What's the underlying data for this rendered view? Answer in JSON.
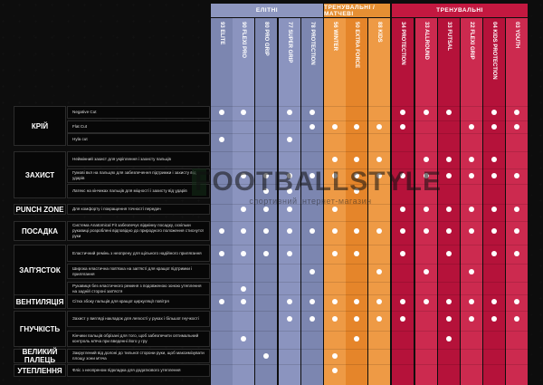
{
  "groups": [
    {
      "label": "ЕЛІТНІ",
      "color": "#8d96bf"
    },
    {
      "label": "ТРЕНУВАЛЬНІ / МАТЧЕВІ",
      "color": "#e58f33"
    },
    {
      "label": "ТРЕНУВАЛЬНІ",
      "color": "#c31840"
    }
  ],
  "columns": [
    {
      "name": "93 ELITE",
      "group": 0
    },
    {
      "name": "90 FLEXI PRO",
      "group": 0
    },
    {
      "name": "80 PRO GRIP",
      "group": 0
    },
    {
      "name": "77 SUPER GRIP",
      "group": 0
    },
    {
      "name": "78 PROTECTION",
      "group": 0
    },
    {
      "name": "56 WINTER",
      "group": 1
    },
    {
      "name": "50 EXTRA FORCE",
      "group": 1
    },
    {
      "name": "88 KIDS",
      "group": 1
    },
    {
      "name": "34 PROTECTION",
      "group": 2
    },
    {
      "name": "33 ALLROUND",
      "group": 2
    },
    {
      "name": "33 FUTSAL",
      "group": 2
    },
    {
      "name": "22 FLEXI GRIP",
      "group": 2
    },
    {
      "name": "04 KIDS PROTECTION",
      "group": 2
    },
    {
      "name": "03 YOUTH",
      "group": 2
    }
  ],
  "categories": [
    {
      "label": "КРІЙ",
      "rows": [
        0,
        1,
        2
      ]
    },
    {
      "label": "ЗАХИСТ",
      "rows": [
        3,
        4,
        5
      ]
    },
    {
      "label": "PUNCH ZONE",
      "rows": [
        6
      ]
    },
    {
      "label": "ПОСАДКА",
      "rows": [
        7
      ]
    },
    {
      "label": "ЗАП'ЯСТОК",
      "rows": [
        8,
        9,
        10
      ]
    },
    {
      "label": "ВЕНТИЛЯЦІЯ",
      "rows": [
        11
      ]
    },
    {
      "label": "ГНУЧКІСТЬ",
      "rows": [
        12,
        13
      ]
    },
    {
      "label": "ВЕЛИКИЙ ПАЛЕЦЬ",
      "rows": [
        14
      ]
    },
    {
      "label": "УТЕПЛЕННЯ",
      "rows": [
        15
      ]
    }
  ],
  "rows": [
    {
      "text": "Negative Cut",
      "dots": [
        0,
        1,
        3,
        4,
        8,
        9,
        10,
        12,
        13
      ]
    },
    {
      "text": "Flat Cut",
      "dots": [
        4,
        5,
        6,
        7,
        8,
        11,
        12,
        13
      ]
    },
    {
      "text": "Hyla cut",
      "dots": [
        0,
        3
      ]
    },
    {
      "text": "Неймінний захист для укріплення і захисту пальців",
      "dots": [
        5,
        6,
        7,
        9,
        10,
        11,
        12
      ]
    },
    {
      "text": "Гумові вкл на пальцях для забезпечення підтримки і захисту від ударів",
      "dots": [
        1,
        2,
        3,
        4,
        5,
        6,
        7,
        8,
        9,
        10,
        11,
        12,
        13
      ]
    },
    {
      "text": "Латекс на кінчиках пальців для міцності і захисту від ударів",
      "dots": [
        2,
        3,
        6
      ]
    },
    {
      "text": "Для комфорту і покращення точності передач",
      "dots": [
        1,
        2,
        3,
        5,
        8,
        9,
        10,
        11,
        12,
        13
      ]
    },
    {
      "text": "Система Anatomical Fit забезпечує відмінну посадку, оскільки рукавиці розроблені відповідно до природного положення стиснутої руки",
      "dots": [
        0,
        1,
        2,
        3,
        4,
        5,
        6,
        7,
        8,
        9,
        10,
        11,
        12,
        13
      ]
    },
    {
      "text": "Еластичний ремінь з неопрену для щільного надійного прилягання",
      "dots": [
        0,
        1,
        2,
        3,
        5,
        6,
        8,
        10,
        12,
        13
      ]
    },
    {
      "text": "Широка еластична пов'язка на зап'ясті для кращої підтримки і прилягання",
      "dots": [
        4,
        7,
        9,
        11
      ]
    },
    {
      "text": "Рукавиця без еластичного ременя з подовженою зоною утеплення на задній стороні зап'ястя",
      "dots": [
        1
      ]
    },
    {
      "text": "Сітка збоку пальців для кращої циркуляції повітря",
      "dots": [
        0,
        1,
        3,
        4,
        5,
        6,
        7,
        8,
        9,
        10,
        11,
        12,
        13
      ]
    },
    {
      "text": "Захист у вигляді накладок для легкості у руках і більшої гнучкості",
      "dots": [
        3,
        4,
        5,
        6,
        7,
        8,
        10,
        11,
        12,
        13
      ]
    },
    {
      "text": "Кінчики пальців обрізані для того, щоб забезпечити оптимальний контроль м'яча при введенні його у гру",
      "dots": [
        1,
        6,
        10
      ]
    },
    {
      "text": "Закруглений від долоні до тильної сторони руки, щоб максимізувати площу зони м'яча",
      "dots": [
        2,
        5
      ]
    },
    {
      "text": "Фліс з неопреном підкладка для додаткового утеплення",
      "dots": [
        5
      ]
    }
  ],
  "watermark": {
    "title": "FOOTBALLSTYLE",
    "subtitle": "спортивний інтернет-магазин"
  }
}
